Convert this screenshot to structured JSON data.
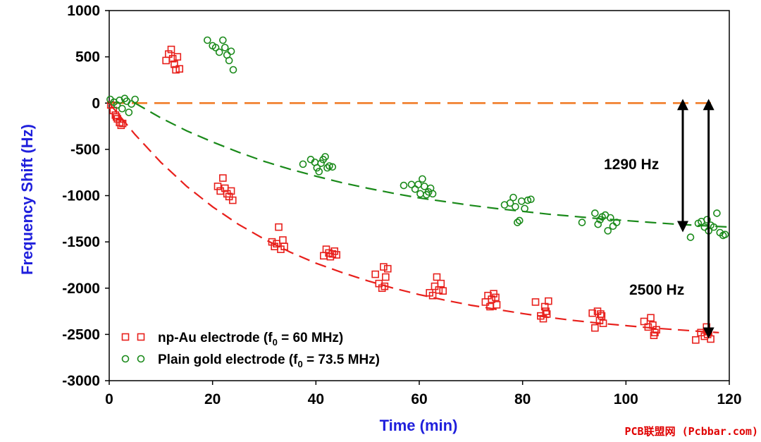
{
  "chart_data": {
    "type": "scatter",
    "title": "",
    "xlabel": "Time (min)",
    "ylabel": "Frequency Shift (Hz)",
    "xlim": [
      0,
      120
    ],
    "ylim": [
      -3000,
      1000
    ],
    "xticks": [
      0,
      20,
      40,
      60,
      80,
      100,
      120
    ],
    "yticks": [
      1000,
      500,
      0,
      -500,
      -1000,
      -1500,
      -2000,
      -2500,
      -3000
    ],
    "legend_position": "bottom-left",
    "colors": {
      "npau": "#e8201c",
      "plain": "#1a8a1a",
      "baseline": "#f07820",
      "arrow": "#000000",
      "axis_title": "#1f1fdc",
      "watermark": "#e00000"
    },
    "series": [
      {
        "name": "np-Au electrode (f0 = 60 MHz)",
        "legend_main": "np-Au electrode (f",
        "legend_sub": "0",
        "legend_tail": " = 60 MHz)",
        "marker": "square",
        "points": [
          [
            0.3,
            -20
          ],
          [
            0.8,
            -80
          ],
          [
            1.2,
            -130
          ],
          [
            1.6,
            -170
          ],
          [
            2.0,
            -210
          ],
          [
            2.3,
            -240
          ],
          [
            1.4,
            -150
          ],
          [
            2.6,
            -220
          ],
          [
            11.0,
            460
          ],
          [
            11.5,
            530
          ],
          [
            12.0,
            580
          ],
          [
            12.3,
            480
          ],
          [
            12.6,
            420
          ],
          [
            12.9,
            360
          ],
          [
            13.2,
            500
          ],
          [
            13.6,
            370
          ],
          [
            21.0,
            -900
          ],
          [
            21.5,
            -950
          ],
          [
            22.0,
            -810
          ],
          [
            22.4,
            -920
          ],
          [
            22.8,
            -980
          ],
          [
            23.2,
            -1010
          ],
          [
            23.6,
            -950
          ],
          [
            23.9,
            -1050
          ],
          [
            31.5,
            -1500
          ],
          [
            32.0,
            -1550
          ],
          [
            32.4,
            -1520
          ],
          [
            32.8,
            -1340
          ],
          [
            33.2,
            -1580
          ],
          [
            33.6,
            -1480
          ],
          [
            33.9,
            -1550
          ],
          [
            41.5,
            -1650
          ],
          [
            42.0,
            -1580
          ],
          [
            42.5,
            -1620
          ],
          [
            42.8,
            -1660
          ],
          [
            43.2,
            -1630
          ],
          [
            43.6,
            -1600
          ],
          [
            44.0,
            -1640
          ],
          [
            51.5,
            -1850
          ],
          [
            52.2,
            -1950
          ],
          [
            52.8,
            -2000
          ],
          [
            53.1,
            -1770
          ],
          [
            53.5,
            -1880
          ],
          [
            53.9,
            -1790
          ],
          [
            53.3,
            -1980
          ],
          [
            62.0,
            -2050
          ],
          [
            62.6,
            -2080
          ],
          [
            63.0,
            -1980
          ],
          [
            63.4,
            -1880
          ],
          [
            63.8,
            -2020
          ],
          [
            64.2,
            -1950
          ],
          [
            64.6,
            -2030
          ],
          [
            72.8,
            -2150
          ],
          [
            73.3,
            -2080
          ],
          [
            73.7,
            -2200
          ],
          [
            74.0,
            -2120
          ],
          [
            74.4,
            -2060
          ],
          [
            74.8,
            -2100
          ],
          [
            75.0,
            -2180
          ],
          [
            82.5,
            -2150
          ],
          [
            83.5,
            -2300
          ],
          [
            84.0,
            -2330
          ],
          [
            84.3,
            -2200
          ],
          [
            84.7,
            -2280
          ],
          [
            85.0,
            -2140
          ],
          [
            84.5,
            -2250
          ],
          [
            93.5,
            -2270
          ],
          [
            94.0,
            -2430
          ],
          [
            94.5,
            -2250
          ],
          [
            94.9,
            -2350
          ],
          [
            95.3,
            -2300
          ],
          [
            95.6,
            -2380
          ],
          [
            95.1,
            -2280
          ],
          [
            103.5,
            -2360
          ],
          [
            104.3,
            -2420
          ],
          [
            104.8,
            -2320
          ],
          [
            105.2,
            -2400
          ],
          [
            105.6,
            -2480
          ],
          [
            105.9,
            -2450
          ],
          [
            105.4,
            -2510
          ],
          [
            113.5,
            -2560
          ],
          [
            114.5,
            -2480
          ],
          [
            115.2,
            -2520
          ],
          [
            115.6,
            -2420
          ],
          [
            116.0,
            -2470
          ],
          [
            116.4,
            -2550
          ],
          [
            115.8,
            -2500
          ]
        ]
      },
      {
        "name": "Plain gold electrode (f0 = 73.5 MHz)",
        "legend_main": "Plain gold electrode (f",
        "legend_sub": "0",
        "legend_tail": " = 73.5 MHz)",
        "marker": "circle",
        "points": [
          [
            0.2,
            40
          ],
          [
            0.9,
            10
          ],
          [
            1.5,
            -20
          ],
          [
            2.0,
            30
          ],
          [
            2.5,
            -60
          ],
          [
            3.0,
            50
          ],
          [
            3.4,
            20
          ],
          [
            3.8,
            -100
          ],
          [
            4.3,
            -10
          ],
          [
            5.0,
            40
          ],
          [
            19.0,
            680
          ],
          [
            20.0,
            620
          ],
          [
            20.6,
            600
          ],
          [
            21.3,
            550
          ],
          [
            22.0,
            680
          ],
          [
            22.4,
            600
          ],
          [
            22.8,
            520
          ],
          [
            23.2,
            460
          ],
          [
            23.6,
            560
          ],
          [
            24.0,
            360
          ],
          [
            37.5,
            -660
          ],
          [
            39.0,
            -610
          ],
          [
            39.8,
            -640
          ],
          [
            40.2,
            -700
          ],
          [
            40.6,
            -740
          ],
          [
            41.0,
            -650
          ],
          [
            41.4,
            -610
          ],
          [
            41.8,
            -580
          ],
          [
            42.2,
            -700
          ],
          [
            42.6,
            -680
          ],
          [
            43.2,
            -690
          ],
          [
            57.0,
            -890
          ],
          [
            58.5,
            -880
          ],
          [
            59.2,
            -930
          ],
          [
            59.8,
            -880
          ],
          [
            60.2,
            -980
          ],
          [
            60.6,
            -820
          ],
          [
            61.0,
            -900
          ],
          [
            61.4,
            -990
          ],
          [
            61.8,
            -960
          ],
          [
            62.2,
            -920
          ],
          [
            62.6,
            -980
          ],
          [
            76.5,
            -1100
          ],
          [
            77.6,
            -1080
          ],
          [
            78.2,
            -1020
          ],
          [
            78.6,
            -1120
          ],
          [
            79.0,
            -1290
          ],
          [
            79.4,
            -1270
          ],
          [
            79.8,
            -1060
          ],
          [
            80.4,
            -1140
          ],
          [
            81.0,
            -1050
          ],
          [
            81.6,
            -1040
          ],
          [
            91.5,
            -1290
          ],
          [
            94.0,
            -1190
          ],
          [
            94.6,
            -1310
          ],
          [
            95.0,
            -1260
          ],
          [
            95.4,
            -1230
          ],
          [
            96.0,
            -1210
          ],
          [
            96.5,
            -1380
          ],
          [
            97.0,
            -1240
          ],
          [
            97.5,
            -1330
          ],
          [
            98.2,
            -1290
          ],
          [
            112.5,
            -1450
          ],
          [
            114.0,
            -1300
          ],
          [
            114.6,
            -1280
          ],
          [
            115.2,
            -1340
          ],
          [
            115.7,
            -1260
          ],
          [
            116.4,
            -1320
          ],
          [
            117.0,
            -1340
          ],
          [
            117.6,
            -1190
          ],
          [
            118.2,
            -1400
          ],
          [
            118.8,
            -1430
          ],
          [
            119.2,
            -1420
          ],
          [
            116.0,
            -1380
          ]
        ]
      }
    ],
    "fit_curves": [
      {
        "series": "np-Au electrode (f0 = 60 MHz)",
        "style": "dashed",
        "points": [
          [
            0,
            0
          ],
          [
            5,
            -340
          ],
          [
            10,
            -640
          ],
          [
            15,
            -900
          ],
          [
            20,
            -1120
          ],
          [
            25,
            -1310
          ],
          [
            30,
            -1470
          ],
          [
            35,
            -1610
          ],
          [
            40,
            -1730
          ],
          [
            45,
            -1830
          ],
          [
            50,
            -1920
          ],
          [
            55,
            -2000
          ],
          [
            60,
            -2070
          ],
          [
            65,
            -2130
          ],
          [
            70,
            -2185
          ],
          [
            75,
            -2230
          ],
          [
            80,
            -2275
          ],
          [
            85,
            -2315
          ],
          [
            90,
            -2350
          ],
          [
            95,
            -2380
          ],
          [
            100,
            -2405
          ],
          [
            105,
            -2430
          ],
          [
            110,
            -2450
          ],
          [
            115,
            -2470
          ],
          [
            118,
            -2480
          ]
        ]
      },
      {
        "series": "Plain gold electrode (f0 = 73.5 MHz)",
        "style": "dashed",
        "points": [
          [
            5,
            0
          ],
          [
            10,
            -160
          ],
          [
            15,
            -300
          ],
          [
            20,
            -420
          ],
          [
            25,
            -530
          ],
          [
            30,
            -630
          ],
          [
            35,
            -715
          ],
          [
            40,
            -790
          ],
          [
            45,
            -860
          ],
          [
            50,
            -920
          ],
          [
            55,
            -975
          ],
          [
            60,
            -1025
          ],
          [
            65,
            -1065
          ],
          [
            70,
            -1105
          ],
          [
            75,
            -1140
          ],
          [
            80,
            -1170
          ],
          [
            85,
            -1200
          ],
          [
            90,
            -1225
          ],
          [
            95,
            -1250
          ],
          [
            100,
            -1270
          ],
          [
            105,
            -1290
          ],
          [
            110,
            -1310
          ],
          [
            115,
            -1325
          ],
          [
            120,
            -1340
          ]
        ]
      }
    ],
    "baseline": {
      "y": 0,
      "x_range": [
        0,
        117
      ],
      "style": "dashed"
    },
    "annotations": [
      {
        "text": "1290 Hz",
        "arrow_x": 111,
        "arrow_from": 0,
        "arrow_to": -1350
      },
      {
        "text": "2500 Hz",
        "arrow_x": 116,
        "arrow_from": 0,
        "arrow_to": -2500
      }
    ]
  },
  "watermark": "PCB联盟网 (Pcbbar.com)"
}
